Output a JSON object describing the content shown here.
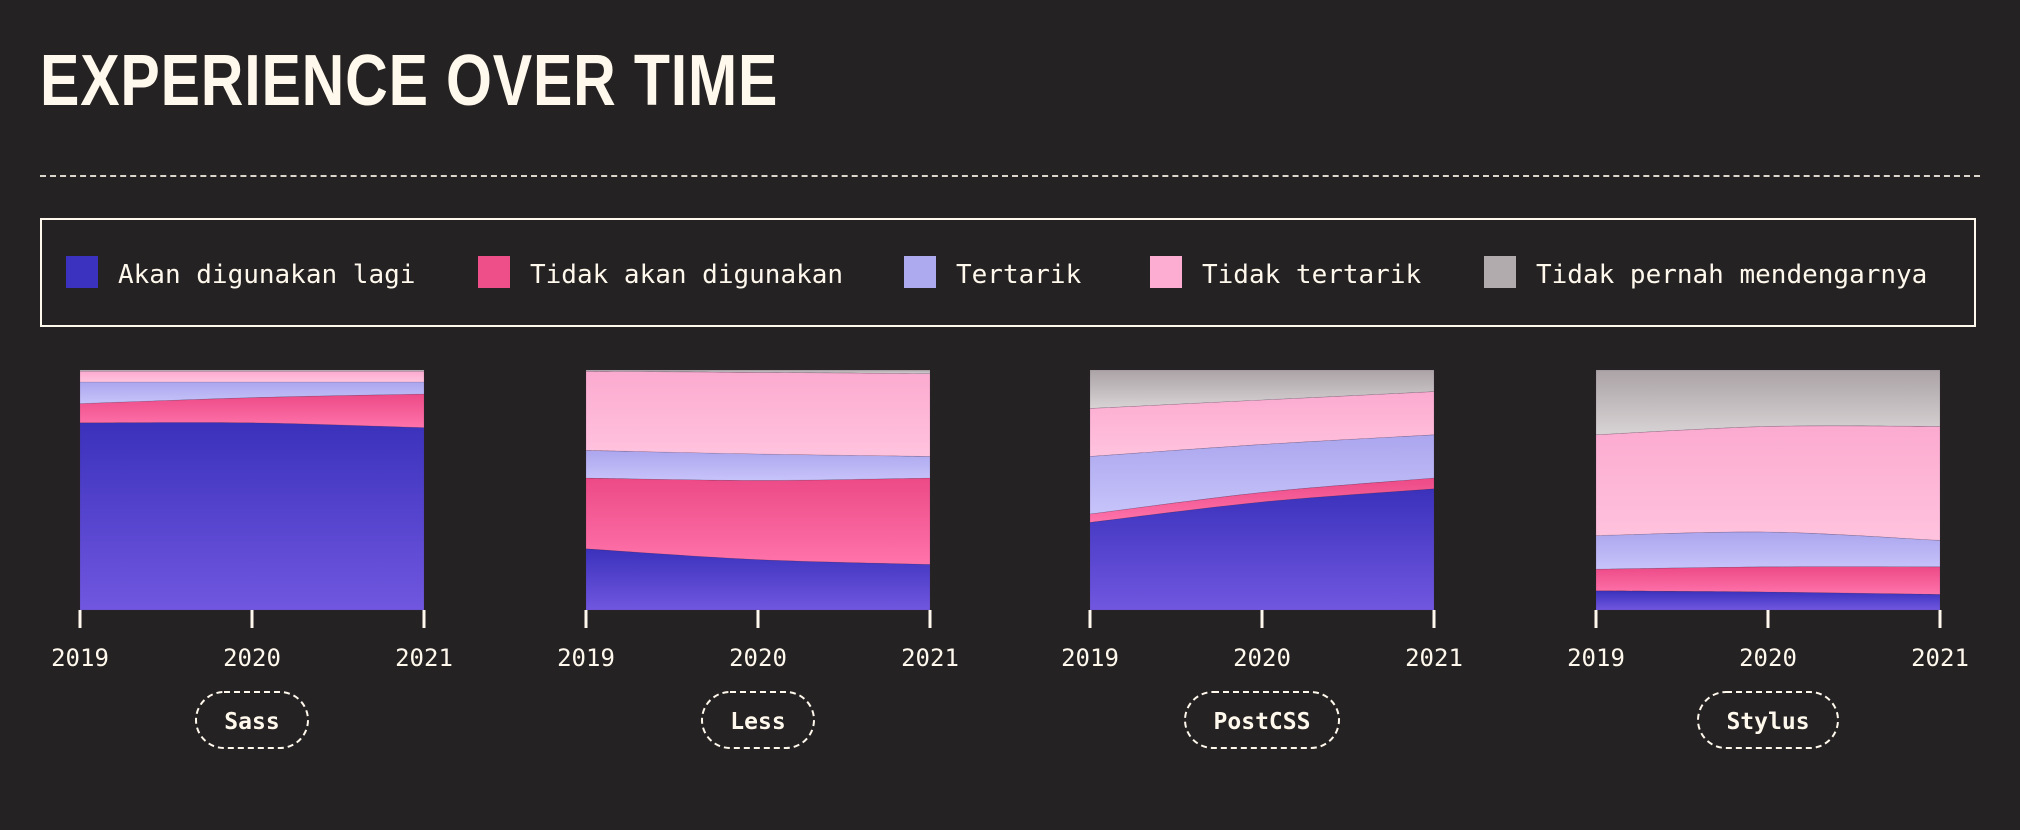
{
  "title": "EXPERIENCE OVER TIME",
  "legend": [
    {
      "label": "Akan digunakan lagi",
      "color": "#3b33bf"
    },
    {
      "label": "Tidak akan digunakan",
      "color": "#ef4f88"
    },
    {
      "label": "Tertarik",
      "color": "#aeaaf0"
    },
    {
      "label": "Tidak tertarik",
      "color": "#feadd2"
    },
    {
      "label": "Tidak pernah mendengarnya",
      "color": "#b2abad"
    }
  ],
  "chart_data": [
    {
      "type": "area",
      "stacked": true,
      "normalized": true,
      "title": "Sass",
      "x": [
        "2019",
        "2020",
        "2021"
      ],
      "ylim": [
        0,
        100
      ],
      "series": [
        {
          "name": "Akan digunakan lagi",
          "values": [
            78,
            78,
            76
          ]
        },
        {
          "name": "Tidak akan digunakan",
          "values": [
            8,
            10.5,
            14
          ]
        },
        {
          "name": "Tertarik",
          "values": [
            9,
            6.5,
            5
          ]
        },
        {
          "name": "Tidak tertarik",
          "values": [
            4.5,
            4.5,
            4.5
          ]
        },
        {
          "name": "Tidak pernah mendengarnya",
          "values": [
            0.5,
            0.5,
            0.5
          ]
        }
      ]
    },
    {
      "type": "area",
      "stacked": true,
      "normalized": true,
      "title": "Less",
      "x": [
        "2019",
        "2020",
        "2021"
      ],
      "ylim": [
        0,
        100
      ],
      "series": [
        {
          "name": "Akan digunakan lagi",
          "values": [
            25.5,
            21,
            19
          ]
        },
        {
          "name": "Tidak akan digunakan",
          "values": [
            29.5,
            33,
            36
          ]
        },
        {
          "name": "Tertarik",
          "values": [
            11.5,
            11,
            9
          ]
        },
        {
          "name": "Tidak tertarik",
          "values": [
            33,
            34,
            34.5
          ]
        },
        {
          "name": "Tidak pernah mendengarnya",
          "values": [
            0.5,
            1,
            1.5
          ]
        }
      ]
    },
    {
      "type": "area",
      "stacked": true,
      "normalized": true,
      "title": "PostCSS",
      "x": [
        "2019",
        "2020",
        "2021"
      ],
      "ylim": [
        0,
        100
      ],
      "series": [
        {
          "name": "Akan digunakan lagi",
          "values": [
            36.5,
            45,
            50.5
          ]
        },
        {
          "name": "Tidak akan digunakan",
          "values": [
            3.5,
            4,
            4.5
          ]
        },
        {
          "name": "Tertarik",
          "values": [
            24,
            20,
            18
          ]
        },
        {
          "name": "Tidak tertarik",
          "values": [
            20,
            18.5,
            18
          ]
        },
        {
          "name": "Tidak pernah mendengarnya",
          "values": [
            16,
            12.5,
            9
          ]
        }
      ]
    },
    {
      "type": "area",
      "stacked": true,
      "normalized": true,
      "title": "Stylus",
      "x": [
        "2019",
        "2020",
        "2021"
      ],
      "ylim": [
        0,
        100
      ],
      "series": [
        {
          "name": "Akan digunakan lagi",
          "values": [
            8,
            7.5,
            6.5
          ]
        },
        {
          "name": "Tidak akan digunakan",
          "values": [
            9,
            10.5,
            11.5
          ]
        },
        {
          "name": "Tertarik",
          "values": [
            14,
            14.5,
            11
          ]
        },
        {
          "name": "Tidak tertarik",
          "values": [
            42,
            44,
            47.5
          ]
        },
        {
          "name": "Tidak pernah mendengarnya",
          "values": [
            27,
            23.5,
            23.5
          ]
        }
      ]
    }
  ]
}
